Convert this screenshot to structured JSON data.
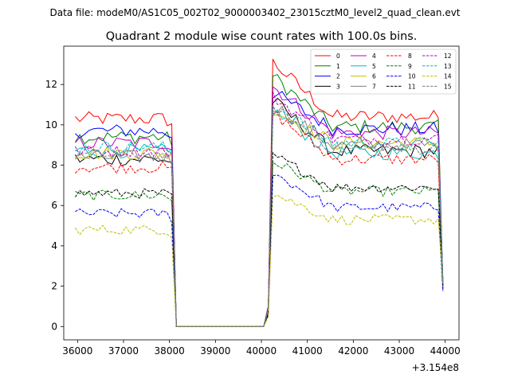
{
  "figure": {
    "suptitle": "Data file: modeM0/AS1C05_002T02_9000003402_23015cztM0_level2_quad_clean.evt"
  },
  "chart_data": {
    "type": "line",
    "title": "Quadrant 2 module wise count rates with 100.0s bins.",
    "xlabel": "",
    "ylabel": "",
    "x_offset_label": "+3.154e8",
    "xlim": [
      35700,
      44300
    ],
    "ylim": [
      -0.66,
      13.9
    ],
    "x_ticks": [
      36000,
      37000,
      38000,
      39000,
      40000,
      41000,
      42000,
      43000,
      44000
    ],
    "x_tick_labels": [
      "36000",
      "37000",
      "38000",
      "39000",
      "40000",
      "41000",
      "42000",
      "43000",
      "44000"
    ],
    "y_ticks": [
      0,
      2,
      4,
      6,
      8,
      10,
      12
    ],
    "y_tick_labels": [
      "0",
      "2",
      "4",
      "6",
      "8",
      "10",
      "12"
    ],
    "grid": false,
    "legend_position": "top-right",
    "legend_columns": 4,
    "gap_start": 38150,
    "gap_end": 40150,
    "x_start": 35950,
    "x_end": 43950,
    "bin_width": 100,
    "series": [
      {
        "name": "0",
        "color": "#ff0000",
        "dash": "solid",
        "level_before": 10.3,
        "level_after": 10.4,
        "peak": 13.1,
        "noise": 0.35
      },
      {
        "name": "1",
        "color": "#008000",
        "dash": "solid",
        "level_before": 9.4,
        "level_after": 9.9,
        "peak": 12.4,
        "noise": 0.35
      },
      {
        "name": "2",
        "color": "#0000ff",
        "dash": "solid",
        "level_before": 9.7,
        "level_after": 9.8,
        "peak": 11.6,
        "noise": 0.35
      },
      {
        "name": "3",
        "color": "#000000",
        "dash": "solid",
        "level_before": 8.3,
        "level_after": 8.7,
        "peak": 11.2,
        "noise": 0.35
      },
      {
        "name": "4",
        "color": "#bf00bf",
        "dash": "solid",
        "level_before": 9.1,
        "level_after": 9.6,
        "peak": 11.9,
        "noise": 0.35
      },
      {
        "name": "5",
        "color": "#00bfbf",
        "dash": "solid",
        "level_before": 8.7,
        "level_after": 8.6,
        "peak": 10.7,
        "noise": 0.35
      },
      {
        "name": "6",
        "color": "#bfbf00",
        "dash": "solid",
        "level_before": 8.6,
        "level_after": 9.1,
        "peak": 10.8,
        "noise": 0.35
      },
      {
        "name": "7",
        "color": "#808080",
        "dash": "solid",
        "level_before": 8.4,
        "level_after": 9.0,
        "peak": 11.0,
        "noise": 0.35
      },
      {
        "name": "8",
        "color": "#ff0000",
        "dash": "dashed",
        "level_before": 7.9,
        "level_after": 8.3,
        "peak": 10.6,
        "noise": 0.3
      },
      {
        "name": "9",
        "color": "#008000",
        "dash": "dashed",
        "level_before": 6.5,
        "level_after": 6.7,
        "peak": 8.2,
        "noise": 0.25
      },
      {
        "name": "10",
        "color": "#0000ff",
        "dash": "dashed",
        "level_before": 5.6,
        "level_after": 5.9,
        "peak": 7.6,
        "noise": 0.25
      },
      {
        "name": "11",
        "color": "#000000",
        "dash": "dashed",
        "level_before": 6.6,
        "level_after": 6.9,
        "peak": 8.5,
        "noise": 0.25
      },
      {
        "name": "12",
        "color": "#bf00bf",
        "dash": "dashed",
        "level_before": 8.7,
        "level_after": 9.3,
        "peak": 11.4,
        "noise": 0.3
      },
      {
        "name": "13",
        "color": "#00bfbf",
        "dash": "dashed",
        "level_before": 8.9,
        "level_after": 9.1,
        "peak": 11.0,
        "noise": 0.3
      },
      {
        "name": "14",
        "color": "#bfbf00",
        "dash": "dashed",
        "level_before": 4.8,
        "level_after": 5.3,
        "peak": 6.6,
        "noise": 0.25
      },
      {
        "name": "15",
        "color": "#808080",
        "dash": "dashed",
        "level_before": 8.5,
        "level_after": 8.8,
        "peak": 10.9,
        "noise": 0.3
      }
    ]
  }
}
